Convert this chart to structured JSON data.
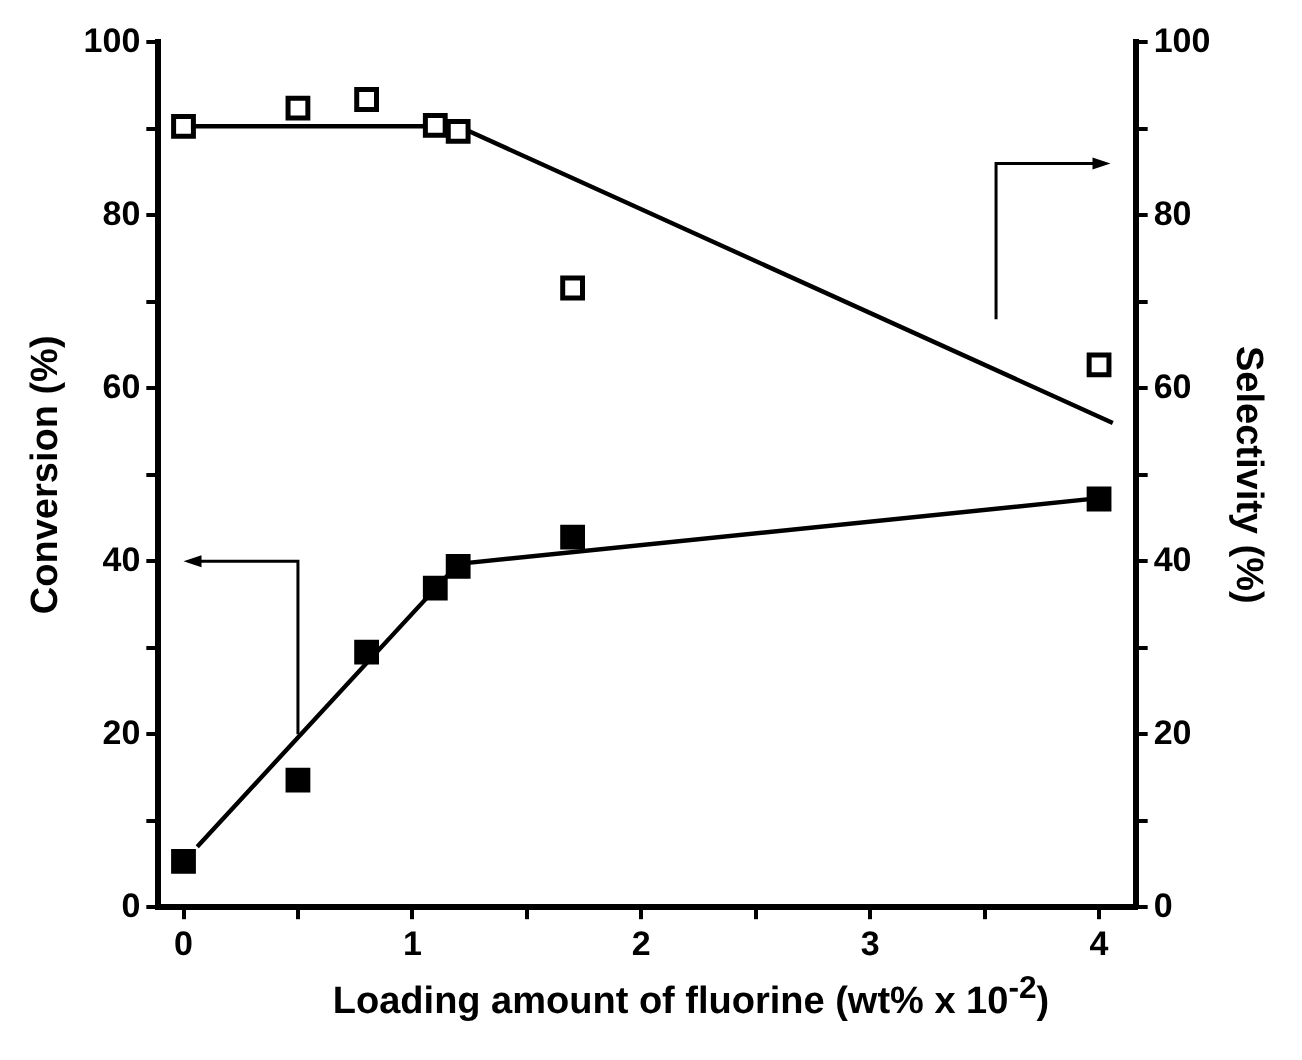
{
  "chart_data": {
    "type": "scatter",
    "xlabel": "Loading amount of fluorine (wt% x 10$^{-2}$)",
    "ylabel": "Conversion (%)",
    "y2label": "Selectivity (%)",
    "xlim": [
      -0.11,
      4.16
    ],
    "xticks": [
      0,
      {
        "value": 0.5,
        "label": null
      },
      1,
      {
        "value": 1.5,
        "label": null
      },
      2,
      {
        "value": 2.5,
        "label": null
      },
      3,
      {
        "value": 3.5,
        "label": null
      },
      4
    ],
    "ylim": [
      0,
      100
    ],
    "yticks": [
      0,
      {
        "value": 10,
        "label": null
      },
      20,
      {
        "value": 30,
        "label": null
      },
      40,
      {
        "value": 50,
        "label": null
      },
      60,
      {
        "value": 70,
        "label": null
      },
      80,
      {
        "value": 90,
        "label": null
      },
      100
    ],
    "y2lim": [
      0,
      100
    ],
    "y2ticks": [
      0,
      {
        "value": 10,
        "label": null
      },
      20,
      {
        "value": 30,
        "label": null
      },
      40,
      {
        "value": 50,
        "label": null
      },
      60,
      {
        "value": 70,
        "label": null
      },
      80,
      {
        "value": 90,
        "label": null
      },
      100
    ],
    "grid": false,
    "legend": false,
    "series": [
      {
        "type": "scatter",
        "color": "#000000",
        "marker": "square",
        "x": [
          0,
          0.5,
          0.8,
          1.1,
          1.2,
          1.7,
          4
        ],
        "values": [
          5.3,
          14.7,
          29.5,
          36.9,
          39.4,
          42.8,
          47.2
        ]
      },
      {
        "type": "scatter",
        "axis": "y2",
        "color": "#000000",
        "marker": "square",
        "x": [
          0,
          0.5,
          0.8,
          1.1,
          1.2,
          1.7,
          4
        ],
        "values": [
          90.3,
          92.4,
          93.4,
          90.4,
          89.7,
          71.6,
          62.7
        ]
      },
      {
        "type": "line",
        "color": "#000000",
        "marker": "none",
        "x": [
          0.06,
          1.2,
          4
        ],
        "values": [
          7,
          39.7,
          47.3
        ]
      },
      {
        "type": "line",
        "axis": "y2",
        "color": "#000000",
        "marker": "none",
        "x": [
          0,
          1.2,
          4.06
        ],
        "values": [
          90.3,
          90.3,
          56
        ]
      }
    ]
  }
}
